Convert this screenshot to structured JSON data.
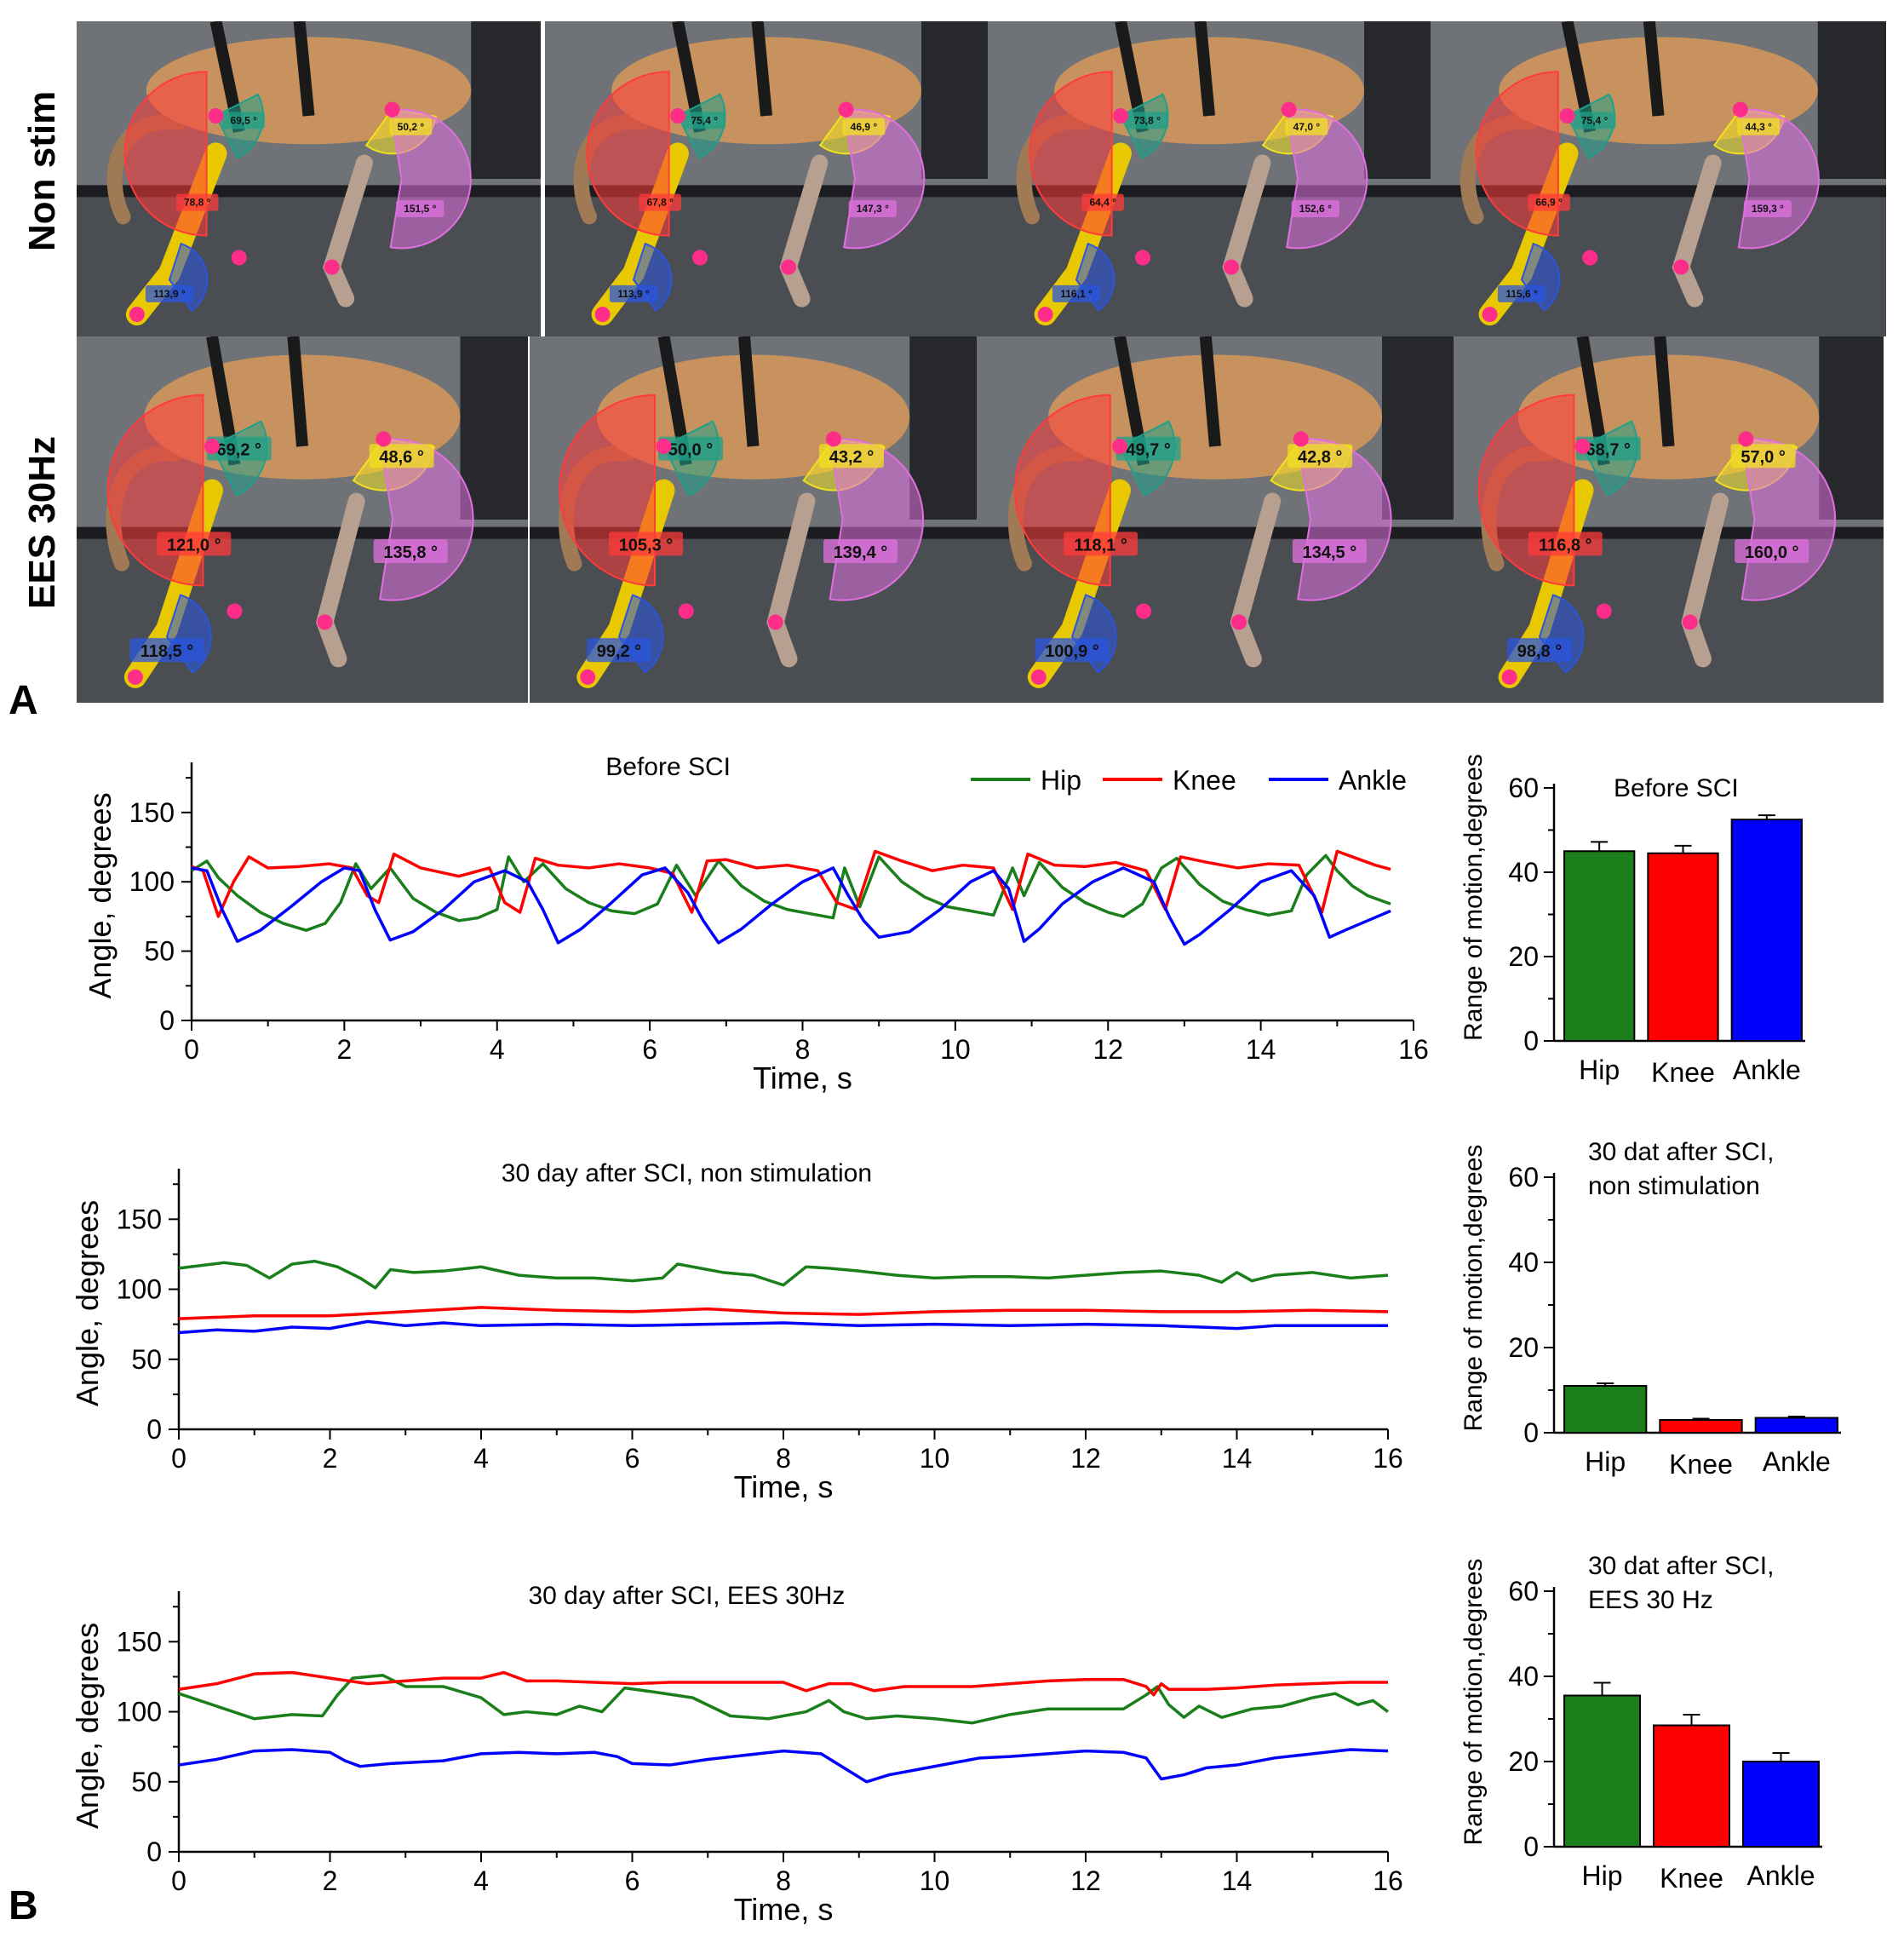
{
  "figure": {
    "panel_a_label": "A",
    "panel_b_label": "B",
    "row_labels": [
      "Non stim",
      "EES 30Hz"
    ]
  },
  "photos": {
    "non_stim": [
      {
        "hip": "69,5 °",
        "knee": "78,8 °",
        "ankle": "113,9 °",
        "shoulder": "50,2 °",
        "elbow": "151,5 °"
      },
      {
        "hip": "75,4 °",
        "knee": "67,8 °",
        "ankle": "113,9 °",
        "shoulder": "46,9 °",
        "elbow": "147,3 °"
      },
      {
        "hip": "73,8 °",
        "knee": "64,4 °",
        "ankle": "116,1 °",
        "shoulder": "47,0 °",
        "elbow": "152,6 °"
      },
      {
        "hip": "75,4 °",
        "knee": "66,9 °",
        "ankle": "115,6 °",
        "shoulder": "44,3 °",
        "elbow": "159,3 °"
      }
    ],
    "ees_30hz": [
      {
        "hip": "69,2 °",
        "knee": "121,0 °",
        "ankle": "118,5 °",
        "shoulder": "48,6 °",
        "elbow": "135,8 °"
      },
      {
        "hip": "50,0 °",
        "knee": "105,3 °",
        "ankle": "99,2 °",
        "shoulder": "43,2 °",
        "elbow": "139,4 °"
      },
      {
        "hip": "49,7 °",
        "knee": "118,1 °",
        "ankle": "100,9 °",
        "shoulder": "42,8 °",
        "elbow": "134,5 °"
      },
      {
        "hip": "68,7 °",
        "knee": "116,8 °",
        "ankle": "98,8 °",
        "shoulder": "57,0 °",
        "elbow": "160,0 °"
      }
    ]
  },
  "colors": {
    "hip": "#1a7f1a",
    "knee": "#ff0000",
    "ankle": "#0000ff"
  },
  "chart_data": [
    {
      "type": "line",
      "title": "Before SCI",
      "xlabel": "Time, s",
      "ylabel": "Angle, degrees",
      "xlim": [
        0,
        16
      ],
      "ylim": [
        0,
        180
      ],
      "xticks": [
        "0",
        "2",
        "4",
        "6",
        "8",
        "10",
        "12",
        "14",
        "16"
      ],
      "yticks": [
        "0",
        "50",
        "100",
        "150"
      ],
      "legend": [
        "Hip",
        "Knee",
        "Ankle"
      ],
      "series": [
        {
          "name": "Hip",
          "x": [
            0.0,
            0.2,
            0.35,
            0.6,
            0.9,
            1.2,
            1.5,
            1.75,
            1.95,
            2.15,
            2.35,
            2.6,
            2.9,
            3.2,
            3.5,
            3.75,
            4.0,
            4.15,
            4.35,
            4.6,
            4.9,
            5.2,
            5.5,
            5.8,
            6.1,
            6.35,
            6.6,
            6.9,
            7.2,
            7.5,
            7.8,
            8.1,
            8.4,
            8.55,
            8.75,
            9.0,
            9.3,
            9.6,
            9.9,
            10.2,
            10.5,
            10.75,
            10.9,
            11.1,
            11.4,
            11.7,
            12.0,
            12.2,
            12.45,
            12.7,
            12.9,
            13.2,
            13.5,
            13.8,
            14.1,
            14.4,
            14.6,
            14.85,
            15.0,
            15.2,
            15.4,
            15.7
          ],
          "y": [
            108,
            115,
            103,
            90,
            78,
            70,
            65,
            70,
            85,
            113,
            95,
            110,
            88,
            78,
            72,
            74,
            80,
            118,
            100,
            113,
            95,
            85,
            79,
            77,
            84,
            112,
            90,
            115,
            97,
            86,
            80,
            77,
            74,
            110,
            82,
            118,
            100,
            89,
            82,
            79,
            76,
            110,
            90,
            114,
            96,
            85,
            78,
            75,
            84,
            110,
            117,
            98,
            86,
            80,
            76,
            79,
            105,
            119,
            108,
            97,
            90,
            84
          ]
        },
        {
          "name": "Knee",
          "x": [
            0.0,
            0.15,
            0.35,
            0.55,
            0.75,
            1.0,
            1.4,
            1.8,
            2.1,
            2.3,
            2.45,
            2.65,
            3.0,
            3.5,
            3.9,
            4.1,
            4.3,
            4.5,
            4.8,
            5.2,
            5.6,
            6.0,
            6.3,
            6.55,
            6.75,
            7.0,
            7.4,
            7.8,
            8.2,
            8.45,
            8.7,
            8.95,
            9.3,
            9.7,
            10.1,
            10.5,
            10.75,
            10.95,
            11.3,
            11.7,
            12.1,
            12.5,
            12.75,
            12.95,
            13.3,
            13.7,
            14.1,
            14.5,
            14.8,
            15.0,
            15.2,
            15.5,
            15.7
          ],
          "y": [
            111,
            108,
            75,
            100,
            118,
            110,
            111,
            113,
            110,
            90,
            85,
            120,
            110,
            104,
            110,
            85,
            78,
            117,
            112,
            110,
            113,
            110,
            106,
            78,
            115,
            116,
            110,
            112,
            108,
            85,
            80,
            122,
            115,
            108,
            112,
            110,
            80,
            120,
            112,
            111,
            114,
            108,
            80,
            118,
            114,
            110,
            113,
            112,
            78,
            122,
            118,
            112,
            109
          ]
        },
        {
          "name": "Ankle",
          "x": [
            0.0,
            0.2,
            0.4,
            0.6,
            0.9,
            1.3,
            1.7,
            2.0,
            2.2,
            2.4,
            2.6,
            2.9,
            3.3,
            3.7,
            4.1,
            4.4,
            4.6,
            4.8,
            5.1,
            5.5,
            5.9,
            6.2,
            6.5,
            6.7,
            6.9,
            7.2,
            7.6,
            8.0,
            8.4,
            8.6,
            8.8,
            9.0,
            9.4,
            9.8,
            10.2,
            10.5,
            10.7,
            10.9,
            11.1,
            11.4,
            11.8,
            12.2,
            12.6,
            12.8,
            13.0,
            13.2,
            13.6,
            14.0,
            14.4,
            14.7,
            14.9,
            15.1,
            15.4,
            15.7
          ],
          "y": [
            110,
            108,
            80,
            57,
            65,
            82,
            100,
            110,
            108,
            80,
            58,
            64,
            80,
            100,
            108,
            100,
            80,
            56,
            66,
            85,
            105,
            110,
            92,
            72,
            56,
            66,
            84,
            100,
            110,
            90,
            72,
            60,
            64,
            80,
            100,
            108,
            95,
            57,
            66,
            84,
            100,
            110,
            100,
            75,
            55,
            62,
            80,
            100,
            108,
            90,
            60,
            65,
            72,
            79
          ]
        }
      ]
    },
    {
      "type": "bar",
      "title": "Before SCI",
      "ylabel": "Range of motion,degrees",
      "ylim": [
        0,
        60
      ],
      "yticks": [
        "0",
        "20",
        "40",
        "60"
      ],
      "categories": [
        "Hip",
        "Knee",
        "Ankle"
      ],
      "values": [
        45,
        44.5,
        52.5
      ],
      "errors": [
        2.2,
        1.8,
        1.0
      ]
    },
    {
      "type": "line",
      "title": "30 day after SCI, non stimulation",
      "xlabel": "Time, s",
      "ylabel": "Angle, degrees",
      "xlim": [
        0,
        16
      ],
      "ylim": [
        0,
        180
      ],
      "xticks": [
        "0",
        "2",
        "4",
        "6",
        "8",
        "10",
        "12",
        "14",
        "16"
      ],
      "yticks": [
        "0",
        "50",
        "100",
        "150"
      ],
      "series": [
        {
          "name": "Hip",
          "x": [
            0.0,
            0.3,
            0.6,
            0.9,
            1.2,
            1.5,
            1.8,
            2.1,
            2.4,
            2.6,
            2.8,
            3.1,
            3.5,
            4.0,
            4.5,
            5.0,
            5.5,
            6.0,
            6.4,
            6.6,
            6.9,
            7.2,
            7.6,
            8.0,
            8.3,
            8.6,
            9.0,
            9.5,
            10.0,
            10.5,
            11.0,
            11.5,
            12.0,
            12.5,
            13.0,
            13.5,
            13.8,
            14.0,
            14.2,
            14.5,
            15.0,
            15.5,
            16.0
          ],
          "y": [
            115,
            117,
            119,
            117,
            108,
            118,
            120,
            116,
            108,
            101,
            114,
            112,
            113,
            116,
            110,
            108,
            108,
            106,
            108,
            118,
            115,
            112,
            110,
            103,
            116,
            115,
            113,
            110,
            108,
            109,
            109,
            108,
            110,
            112,
            113,
            110,
            105,
            112,
            106,
            110,
            112,
            108,
            110
          ]
        },
        {
          "name": "Knee",
          "x": [
            0.0,
            1.0,
            2.0,
            3.0,
            4.0,
            5.0,
            6.0,
            7.0,
            8.0,
            9.0,
            10.0,
            11.0,
            12.0,
            13.0,
            14.0,
            15.0,
            16.0
          ],
          "y": [
            79,
            81,
            81,
            84,
            87,
            85,
            84,
            86,
            83,
            82,
            84,
            85,
            85,
            84,
            84,
            85,
            84
          ]
        },
        {
          "name": "Ankle",
          "x": [
            0.0,
            0.5,
            1.0,
            1.5,
            2.0,
            2.5,
            3.0,
            3.5,
            4.0,
            5.0,
            6.0,
            7.0,
            8.0,
            9.0,
            10.0,
            11.0,
            12.0,
            13.0,
            14.0,
            14.5,
            15.0,
            16.0
          ],
          "y": [
            69,
            71,
            70,
            73,
            72,
            77,
            74,
            76,
            74,
            75,
            74,
            75,
            76,
            74,
            75,
            74,
            75,
            74,
            72,
            74,
            74,
            74
          ]
        }
      ]
    },
    {
      "type": "bar",
      "title": "30 dat after SCI, non stimulation",
      "ylabel": "Range of motion,degrees",
      "ylim": [
        0,
        60
      ],
      "yticks": [
        "0",
        "20",
        "40",
        "60"
      ],
      "categories": [
        "Hip",
        "Knee",
        "Ankle"
      ],
      "values": [
        11,
        3,
        3.5
      ],
      "errors": [
        0.6,
        0.3,
        0.3
      ]
    },
    {
      "type": "line",
      "title": "30 day after SCI, EES 30Hz",
      "xlabel": "Time, s",
      "ylabel": "Angle, degrees",
      "xlim": [
        0,
        16
      ],
      "ylim": [
        0,
        180
      ],
      "xticks": [
        "0",
        "2",
        "4",
        "6",
        "8",
        "10",
        "12",
        "14",
        "16"
      ],
      "yticks": [
        "0",
        "50",
        "100",
        "150"
      ],
      "series": [
        {
          "name": "Hip",
          "x": [
            0.0,
            0.5,
            1.0,
            1.5,
            1.9,
            2.1,
            2.3,
            2.7,
            3.0,
            3.5,
            4.0,
            4.3,
            4.6,
            5.0,
            5.3,
            5.6,
            5.9,
            6.3,
            6.8,
            7.3,
            7.8,
            8.3,
            8.6,
            8.8,
            9.1,
            9.5,
            10.0,
            10.5,
            11.0,
            11.5,
            12.0,
            12.5,
            12.8,
            12.95,
            13.1,
            13.3,
            13.5,
            13.8,
            14.2,
            14.6,
            15.0,
            15.3,
            15.6,
            15.8,
            16.0
          ],
          "y": [
            113,
            104,
            95,
            98,
            97,
            112,
            124,
            126,
            118,
            118,
            110,
            98,
            100,
            98,
            104,
            100,
            117,
            114,
            110,
            97,
            95,
            100,
            108,
            100,
            95,
            97,
            95,
            92,
            98,
            102,
            102,
            102,
            112,
            118,
            105,
            96,
            104,
            96,
            102,
            104,
            110,
            113,
            105,
            108,
            100
          ]
        },
        {
          "name": "Knee",
          "x": [
            0.0,
            0.5,
            1.0,
            1.5,
            2.0,
            2.5,
            3.0,
            3.5,
            4.0,
            4.3,
            4.6,
            5.0,
            5.5,
            6.0,
            6.5,
            7.0,
            7.5,
            8.0,
            8.3,
            8.6,
            8.9,
            9.2,
            9.6,
            10.0,
            10.5,
            11.0,
            11.5,
            12.0,
            12.5,
            12.8,
            12.9,
            13.0,
            13.1,
            13.3,
            13.6,
            14.0,
            14.5,
            15.0,
            15.5,
            16.0
          ],
          "y": [
            116,
            120,
            127,
            128,
            124,
            120,
            122,
            124,
            124,
            128,
            122,
            122,
            121,
            120,
            121,
            121,
            121,
            121,
            115,
            120,
            120,
            115,
            118,
            118,
            118,
            120,
            122,
            123,
            123,
            118,
            112,
            120,
            116,
            116,
            116,
            117,
            119,
            120,
            121,
            121
          ]
        },
        {
          "name": "Ankle",
          "x": [
            0.0,
            0.5,
            1.0,
            1.5,
            2.0,
            2.2,
            2.4,
            2.8,
            3.5,
            4.0,
            4.5,
            5.0,
            5.5,
            5.8,
            6.0,
            6.5,
            7.0,
            7.5,
            8.0,
            8.5,
            8.8,
            9.1,
            9.4,
            9.8,
            10.2,
            10.6,
            11.0,
            11.5,
            12.0,
            12.5,
            12.8,
            13.0,
            13.3,
            13.6,
            14.0,
            14.5,
            15.0,
            15.5,
            16.0
          ],
          "y": [
            62,
            66,
            72,
            73,
            71,
            65,
            61,
            63,
            65,
            70,
            71,
            70,
            71,
            68,
            63,
            62,
            66,
            69,
            72,
            70,
            60,
            50,
            55,
            59,
            63,
            67,
            68,
            70,
            72,
            71,
            67,
            52,
            55,
            60,
            62,
            67,
            70,
            73,
            72
          ]
        }
      ]
    },
    {
      "type": "bar",
      "title": "30 dat after SCI, EES 30 Hz",
      "ylabel": "Range of motion,degrees",
      "ylim": [
        0,
        60
      ],
      "yticks": [
        "0",
        "20",
        "40",
        "60"
      ],
      "categories": [
        "Hip",
        "Knee",
        "Ankle"
      ],
      "values": [
        35.5,
        28.5,
        20
      ],
      "errors": [
        3.0,
        2.5,
        2.0
      ]
    }
  ]
}
